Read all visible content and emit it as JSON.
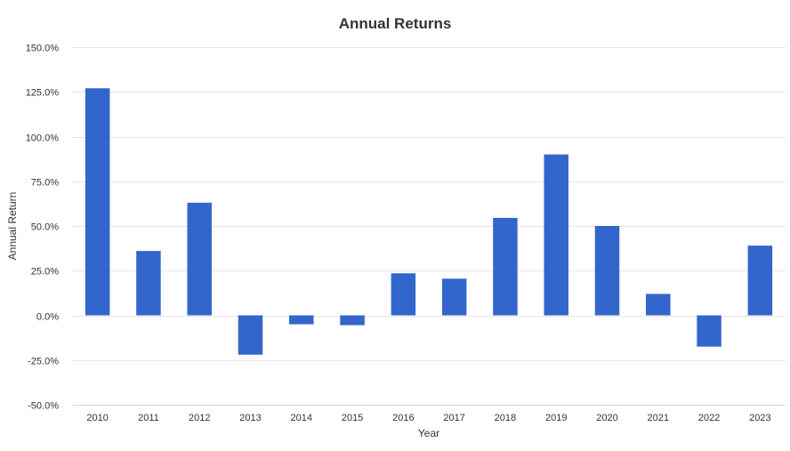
{
  "chart_data": {
    "type": "bar",
    "title": "Annual Returns",
    "xlabel": "Year",
    "ylabel": "Annual Return",
    "categories": [
      "2010",
      "2011",
      "2012",
      "2013",
      "2014",
      "2015",
      "2016",
      "2017",
      "2018",
      "2019",
      "2020",
      "2021",
      "2022",
      "2023"
    ],
    "series": [
      {
        "values": [
          127.0,
          36.0,
          63.0,
          -22.0,
          -5.0,
          -5.5,
          23.5,
          20.5,
          54.5,
          90.0,
          50.0,
          12.0,
          -17.5,
          39.0
        ]
      }
    ],
    "ylim": [
      -50,
      150
    ],
    "yticks": [
      "150.0%",
      "125.0%",
      "100.0%",
      "75.0%",
      "50.0%",
      "25.0%",
      "0.0%",
      "-25.0%",
      "-50.0%"
    ],
    "ytick_values": [
      150,
      125,
      100,
      75,
      50,
      25,
      0,
      -25,
      -50
    ],
    "grid": true,
    "colors": {
      "bar": "#3366cc",
      "grid": "#e6e6e6",
      "axis": "#ccd6eb",
      "text": "#333333"
    }
  }
}
